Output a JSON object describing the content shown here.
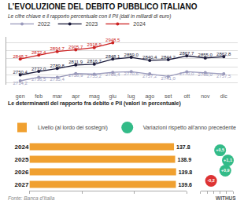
{
  "chart_data": [
    {
      "type": "line",
      "title": "L’EVOLUZIONE DEL DEBITO PUBBLICO ITALIANO",
      "subtitle": "Le cifre chiave e il rapporto percentuale con il Pil (dati in miliardi di euro)",
      "categories": [
        "gen",
        "feb",
        "mar",
        "apr",
        "mag",
        "giu",
        "lug",
        "ago",
        "set",
        "ott",
        "nov",
        "dic"
      ],
      "series": [
        {
          "name": "2022",
          "color": "#9999bb",
          "marker": "circle",
          "values": [
            2714.2,
            2736.5,
            2735.4,
            2758.9,
            2755.2,
            2766.4,
            2770.6,
            2757.2,
            2741.0,
            2770.0,
            2765.0,
            2757.5
          ],
          "value_labels": [
            "2714,2",
            "2736,5",
            "2735,4",
            "2758,9",
            "2755,2",
            "2766,4",
            "2770,6",
            "2757,2",
            "2741,0",
            "2770,0",
            "2765,0",
            "2757,5"
          ]
        },
        {
          "name": "2023",
          "color": "#1a1a3a",
          "marker": "circle",
          "values": [
            2750.4,
            2772.0,
            2789.8,
            2811.9,
            2816.7,
            2848.1,
            2859.0,
            2840.4,
            2844.2,
            2867.7,
            2855.0,
            2862.8
          ],
          "value_labels": [
            "2750,4",
            "2772,0",
            "2789,8",
            "2811,9",
            "2816,7",
            "2848,1",
            "2859,0",
            "2840,4",
            "2844,2",
            "2867,7",
            "2855,0",
            "2862,8"
          ]
        },
        {
          "name": "2024",
          "color": "#cc2222",
          "marker": "circle",
          "values": [
            2848.7,
            2872.4,
            2894.7,
            2905.7,
            2918.9,
            2948.5,
            null,
            null,
            null,
            null,
            null,
            null
          ],
          "value_labels": [
            "2848,7",
            "2872,4",
            "2894,7",
            "2905,7",
            "2918,9",
            "2948,5",
            null,
            null,
            null,
            null,
            null,
            null
          ]
        }
      ],
      "ylim": [
        2690,
        2985
      ],
      "yticks": [
        2700,
        2750,
        2800,
        2850,
        2900,
        2950
      ],
      "grid": true,
      "tick_labels": "x",
      "data_labels": true,
      "legend": "top left"
    },
    {
      "type": "bar",
      "title": "Le determinanti del rapporto fra debito e Pil (valori in percentuale)",
      "orientation": "horizontal",
      "categories": [
        "2024",
        "2025",
        "2026",
        "2027"
      ],
      "series": [
        {
          "name": "Livello (al lordo dei sostegni)",
          "color": "#f0a030",
          "values": [
            137.8,
            138.9,
            139.8,
            139.6
          ]
        }
      ],
      "xlim": [
        0,
        150
      ],
      "xticks": [
        0,
        50,
        100,
        150
      ],
      "grid": false,
      "tick_labels": "y",
      "data_labels": true,
      "legend": "top left",
      "annotations": [
        "Fonte: Banca d’Italia",
        "WITHUS"
      ]
    },
    {
      "type": "scatter",
      "orientation": "horizontal",
      "categories": [
        "2024",
        "2025",
        "2026",
        "2027"
      ],
      "series": [
        {
          "name": "Variazioni rispetto all’anno precedente",
          "marker": "circle",
          "colors": [
            "#33bb88",
            "#33bb88",
            "#33bb88",
            "#dd3333"
          ],
          "values": [
            0.5,
            1.1,
            0.9,
            -0.2
          ],
          "value_labels": [
            "+0,5",
            "+1,1",
            "+0,9",
            "-0,2"
          ]
        }
      ],
      "xlim": [
        -1,
        1.5
      ],
      "xticks": [
        -1,
        -0.5,
        0,
        0.5,
        1,
        1.5
      ],
      "grid": false,
      "tick_labels": false,
      "data_labels": true,
      "legend": "top left"
    }
  ]
}
